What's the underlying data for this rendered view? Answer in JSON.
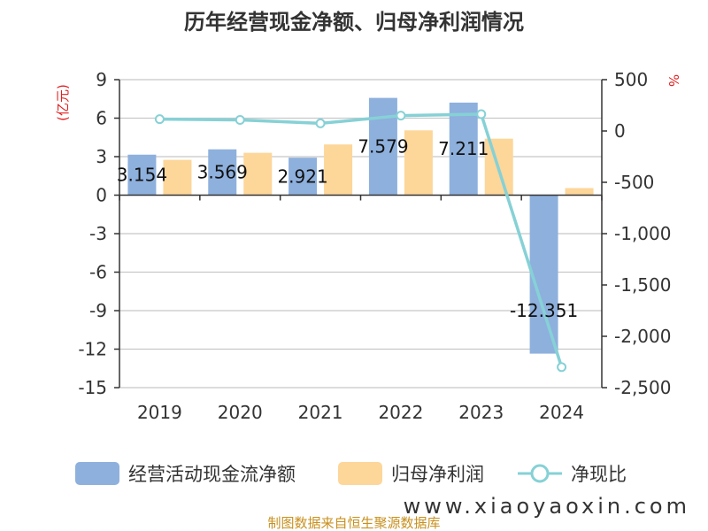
{
  "chart_data": {
    "type": "bar",
    "title": "历年经营现金净额、归母净利润情况",
    "categories": [
      "2019",
      "2020",
      "2021",
      "2022",
      "2023",
      "2024"
    ],
    "series": [
      {
        "name": "经营活动现金流净额",
        "type": "bar",
        "axis": "left",
        "color": "#8eb0dd",
        "values": [
          3.154,
          3.569,
          2.921,
          7.579,
          7.211,
          -12.351
        ],
        "labels": [
          "3.154",
          "3.569",
          "2.921",
          "7.579",
          "7.211",
          "-12.351"
        ]
      },
      {
        "name": "归母净利润",
        "type": "bar",
        "axis": "left",
        "color": "#fdd69a",
        "values": [
          2.75,
          3.3,
          3.95,
          5.05,
          4.4,
          0.55
        ]
      },
      {
        "name": "净现比",
        "type": "line",
        "axis": "right",
        "color": "#86d1d6",
        "values": [
          115,
          108,
          74,
          150,
          164,
          -2300
        ]
      }
    ],
    "y_left": {
      "unit": "(亿元)",
      "ylim": [
        -15,
        9
      ],
      "ticks": [
        9,
        6,
        3,
        0,
        -3,
        -6,
        -9,
        -12,
        -15
      ],
      "tick_labels": [
        "9",
        "6",
        "3",
        "0",
        "-3",
        "-6",
        "-9",
        "-12",
        "-15"
      ]
    },
    "y_right": {
      "unit": "%",
      "ylim": [
        -2500,
        500
      ],
      "ticks": [
        500,
        0,
        -500,
        -1000,
        -1500,
        -2000,
        -2500
      ],
      "tick_labels": [
        "500",
        "0",
        "-500",
        "-1,000",
        "-1,500",
        "-2,000",
        "-2,500"
      ]
    },
    "grid": true,
    "legend_position": "bottom"
  },
  "footer": {
    "source": "制图数据来自恒生聚源数据库",
    "watermark": "www.xiaoyaoxin.com"
  }
}
